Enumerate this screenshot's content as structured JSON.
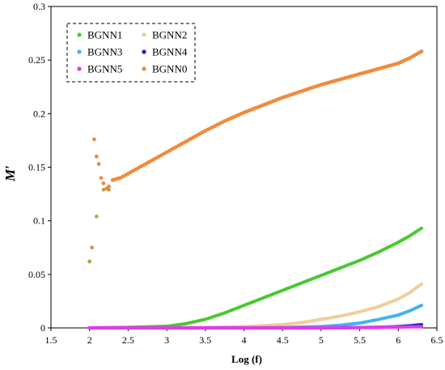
{
  "chart_data": {
    "type": "scatter",
    "title": "",
    "xlabel": "Log (f)",
    "ylabel": "M′",
    "xlim": [
      1.5,
      6.5
    ],
    "ylim": [
      0,
      0.3
    ],
    "xticks": [
      "1.5",
      "2",
      "2.5",
      "3",
      "3.5",
      "4",
      "4.5",
      "5",
      "5.5",
      "6",
      "6.5"
    ],
    "yticks": [
      "0",
      "0.05",
      "0.1",
      "0.15",
      "0.2",
      "0.25",
      "0.3"
    ],
    "grid": false,
    "legend_position": "top-left",
    "series": [
      {
        "name": "BGNN1",
        "color": "#49c92e",
        "x": [
          2.0,
          2.5,
          3.0,
          3.25,
          3.5,
          3.75,
          4.0,
          4.25,
          4.5,
          4.75,
          5.0,
          5.25,
          5.5,
          5.75,
          6.0,
          6.15,
          6.3
        ],
        "y": [
          0.0,
          0.0005,
          0.0015,
          0.004,
          0.008,
          0.014,
          0.021,
          0.028,
          0.035,
          0.042,
          0.049,
          0.056,
          0.063,
          0.071,
          0.08,
          0.086,
          0.093
        ]
      },
      {
        "name": "BGNN2",
        "color": "#f2cd9a",
        "x": [
          2.0,
          3.0,
          3.5,
          4.0,
          4.5,
          4.75,
          5.0,
          5.25,
          5.5,
          5.75,
          6.0,
          6.15,
          6.3
        ],
        "y": [
          0.0,
          0.0,
          0.0003,
          0.0012,
          0.003,
          0.005,
          0.008,
          0.011,
          0.015,
          0.02,
          0.027,
          0.033,
          0.041
        ]
      },
      {
        "name": "BGNN3",
        "color": "#43b3ef",
        "x": [
          2.0,
          4.0,
          4.5,
          5.0,
          5.25,
          5.5,
          5.75,
          6.0,
          6.15,
          6.3
        ],
        "y": [
          0.0,
          0.0,
          0.0003,
          0.0012,
          0.0025,
          0.0045,
          0.008,
          0.012,
          0.016,
          0.021
        ]
      },
      {
        "name": "BGNN4",
        "color": "#1c1ccf",
        "x": [
          2.0,
          5.0,
          5.5,
          5.75,
          6.0,
          6.15,
          6.3
        ],
        "y": [
          0.0,
          0.0,
          0.0003,
          0.0006,
          0.0012,
          0.002,
          0.003
        ]
      },
      {
        "name": "BGNN5",
        "color": "#e43ae8",
        "x": [
          2.0,
          3.0,
          4.0,
          5.0,
          5.5,
          6.0,
          6.3
        ],
        "y": [
          0.0,
          0.0,
          0.0,
          0.0,
          0.0003,
          0.0008,
          0.0012
        ]
      },
      {
        "name": "BGNN0",
        "color": "#f08a3c",
        "x": [
          2.0,
          2.03,
          2.06,
          2.09,
          2.12,
          2.15,
          2.18,
          2.22,
          2.25,
          2.3,
          2.35,
          2.4,
          2.5,
          2.6,
          2.7,
          2.8,
          3.0,
          3.25,
          3.5,
          3.75,
          4.0,
          4.25,
          4.5,
          4.75,
          5.0,
          5.25,
          5.5,
          5.75,
          6.0,
          6.15,
          6.3
        ],
        "y": [
          0.062,
          0.075,
          0.176,
          0.16,
          0.153,
          0.14,
          0.135,
          0.13,
          0.132,
          0.138,
          0.139,
          0.14,
          0.144,
          0.148,
          0.152,
          0.156,
          0.164,
          0.174,
          0.184,
          0.193,
          0.201,
          0.208,
          0.215,
          0.221,
          0.227,
          0.232,
          0.237,
          0.242,
          0.247,
          0.252,
          0.258
        ]
      }
    ],
    "annotations": [
      {
        "color": "#b6a04c",
        "x": [
          2.0,
          2.09,
          2.18,
          2.25
        ],
        "y": [
          0.062,
          0.104,
          0.129,
          0.129
        ]
      }
    ]
  }
}
